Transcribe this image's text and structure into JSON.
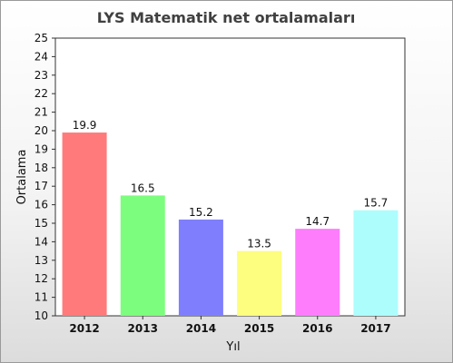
{
  "chart_data": {
    "type": "bar",
    "title": "LYS Matematik net ortalamaları",
    "xlabel": "Yıl",
    "ylabel": "Ortalama",
    "categories": [
      "2012",
      "2013",
      "2014",
      "2015",
      "2016",
      "2017"
    ],
    "values": [
      19.9,
      16.5,
      15.2,
      13.5,
      14.7,
      15.7
    ],
    "data_labels": [
      "19.9",
      "16.5",
      "15.2",
      "13.5",
      "14.7",
      "15.7"
    ],
    "ylim": [
      10,
      25
    ],
    "yticks": [
      "10",
      "11",
      "12",
      "13",
      "14",
      "15",
      "16",
      "17",
      "18",
      "19",
      "20",
      "21",
      "22",
      "23",
      "24",
      "25"
    ],
    "grid": false,
    "legend": "none",
    "colors": [
      "#ff7b7b",
      "#7dfd7d",
      "#7f7ffd",
      "#fdfd7f",
      "#fd7dfd",
      "#adfdfd"
    ]
  }
}
